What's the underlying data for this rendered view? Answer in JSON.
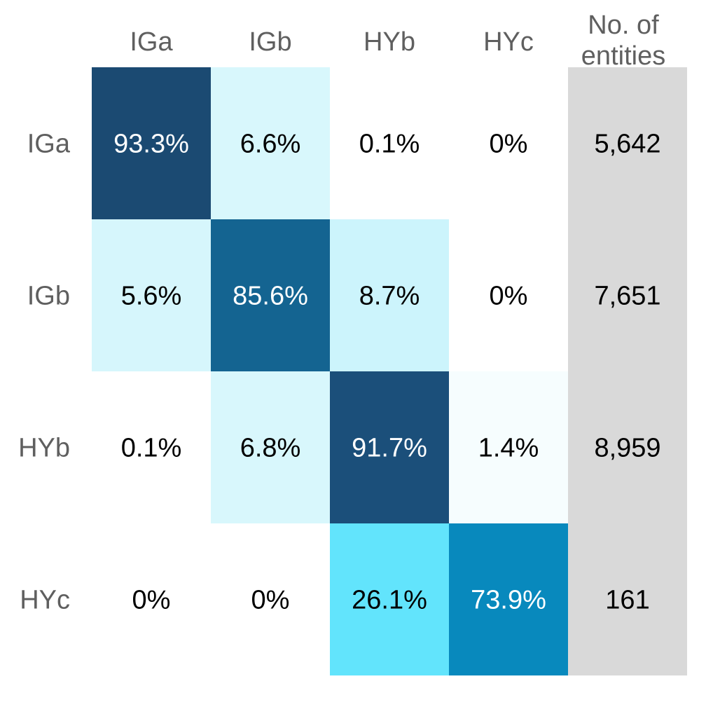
{
  "chart_data": {
    "type": "heatmap",
    "title": "",
    "columns": [
      "IGa",
      "IGb",
      "HYb",
      "HYc"
    ],
    "rows": [
      "IGa",
      "IGb",
      "HYb",
      "HYc"
    ],
    "values": [
      [
        93.3,
        6.6,
        0.1,
        0
      ],
      [
        5.6,
        85.6,
        8.7,
        0
      ],
      [
        0.1,
        6.8,
        91.7,
        1.4
      ],
      [
        0,
        0,
        26.1,
        73.9
      ]
    ],
    "cell_labels": [
      [
        "93.3%",
        "6.6%",
        "0.1%",
        "0%"
      ],
      [
        "5.6%",
        "85.6%",
        "8.7%",
        "0%"
      ],
      [
        "0.1%",
        "6.8%",
        "91.7%",
        "1.4%"
      ],
      [
        "0%",
        "0%",
        "26.1%",
        "73.9%"
      ]
    ],
    "count_header": [
      "No. of",
      "entities"
    ],
    "counts": [
      "5,642",
      "7,651",
      "8,959",
      "161"
    ],
    "count_column_color": "#d9d9d9",
    "colors": {
      "cells": [
        [
          "#1b4a72",
          "#d8f7fc",
          "#ffffff",
          "#ffffff"
        ],
        [
          "#d6f6fc",
          "#146491",
          "#ccf4fc",
          "#ffffff"
        ],
        [
          "#ffffff",
          "#d8f7fc",
          "#1b4f7a",
          "#f6fdfe"
        ],
        [
          "#ffffff",
          "#ffffff",
          "#62e4fc",
          "#0889bd"
        ]
      ],
      "label_light": "#ffffff",
      "label_dark": "#000000"
    }
  }
}
